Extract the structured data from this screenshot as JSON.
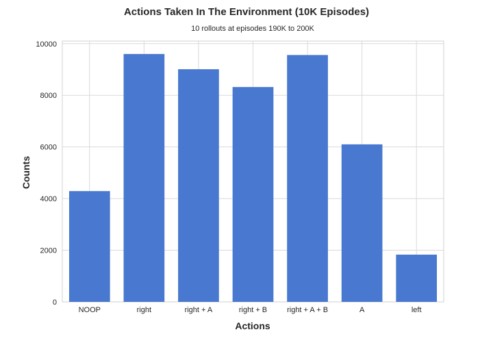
{
  "chart_data": {
    "type": "bar",
    "title": "Actions Taken In The Environment (10K Episodes)",
    "subtitle": "10 rollouts at episodes 190K to 200K",
    "xlabel": "Actions",
    "ylabel": "Counts",
    "categories": [
      "NOOP",
      "right",
      "right + A",
      "right + B",
      "right + A + B",
      "A",
      "left"
    ],
    "values": [
      4290,
      9600,
      9010,
      8320,
      9560,
      6100,
      1830
    ],
    "ylim": [
      0,
      10100
    ],
    "yticks": [
      0,
      2000,
      4000,
      6000,
      8000,
      10000
    ],
    "grid": true,
    "bar_color": "#4878cf"
  }
}
